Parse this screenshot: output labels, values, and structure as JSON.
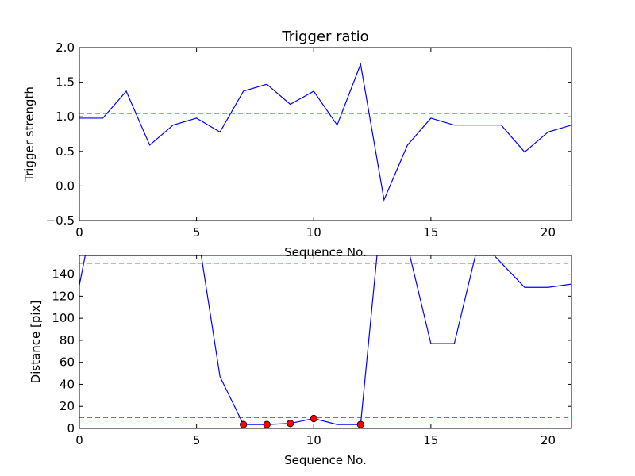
{
  "chart_data": [
    {
      "type": "line",
      "title": "Trigger ratio",
      "xlabel": "Sequence No.",
      "ylabel": "Trigger strength",
      "xlim": [
        0,
        21
      ],
      "ylim": [
        -0.5,
        2.0
      ],
      "xticks": [
        0,
        5,
        10,
        15,
        20
      ],
      "yticks": [
        -0.5,
        0.0,
        0.5,
        1.0,
        1.5,
        2.0
      ],
      "ytick_labels": [
        "−0.5",
        "0.0",
        "0.5",
        "1.0",
        "1.5",
        "2.0"
      ],
      "grid": false,
      "series": [
        {
          "color": "#0000ff",
          "x": [
            0,
            1,
            2,
            3,
            4,
            5,
            6,
            7,
            8,
            9,
            10,
            11,
            12,
            13,
            14,
            15,
            16,
            17,
            18,
            19,
            20,
            21
          ],
          "y": [
            0.98,
            0.98,
            1.37,
            0.59,
            0.88,
            0.98,
            0.78,
            1.37,
            1.47,
            1.18,
            1.37,
            0.88,
            1.76,
            -0.2,
            0.59,
            0.98,
            0.88,
            0.88,
            0.88,
            0.49,
            0.78,
            0.88
          ]
        }
      ],
      "hlines": [
        {
          "y": 1.05,
          "color": "#ff0000",
          "style": "dashed"
        }
      ]
    },
    {
      "type": "line",
      "title": "",
      "xlabel": "Sequence No.",
      "ylabel": "Distance [pix]",
      "xlim": [
        0,
        21
      ],
      "ylim": [
        0,
        157
      ],
      "xticks": [
        0,
        5,
        10,
        15,
        20
      ],
      "yticks": [
        0,
        20,
        40,
        60,
        80,
        100,
        120,
        140
      ],
      "ytick_labels": [
        "0",
        "20",
        "40",
        "60",
        "80",
        "100",
        "120",
        "140"
      ],
      "grid": false,
      "series": [
        {
          "color": "#0000ff",
          "x": [
            0,
            0.25,
            5.2,
            6,
            7,
            8,
            9,
            10,
            11,
            12,
            12.7,
            14.1,
            15,
            16,
            16.9,
            17.7,
            19,
            20,
            21
          ],
          "y": [
            130,
            157,
            157,
            47,
            3.5,
            3.5,
            4.5,
            9,
            3.5,
            3.5,
            157,
            157,
            77,
            77,
            157,
            157,
            128,
            128,
            131
          ]
        }
      ],
      "markers": {
        "color": "#ff0000",
        "x": [
          7,
          8,
          9,
          10,
          12
        ],
        "y": [
          3.5,
          3.5,
          4.5,
          9,
          3.5
        ]
      },
      "hlines": [
        {
          "y": 150,
          "color": "#ff0000",
          "style": "dashed"
        },
        {
          "y": 10,
          "color": "#ff0000",
          "style": "dashed"
        }
      ]
    }
  ]
}
